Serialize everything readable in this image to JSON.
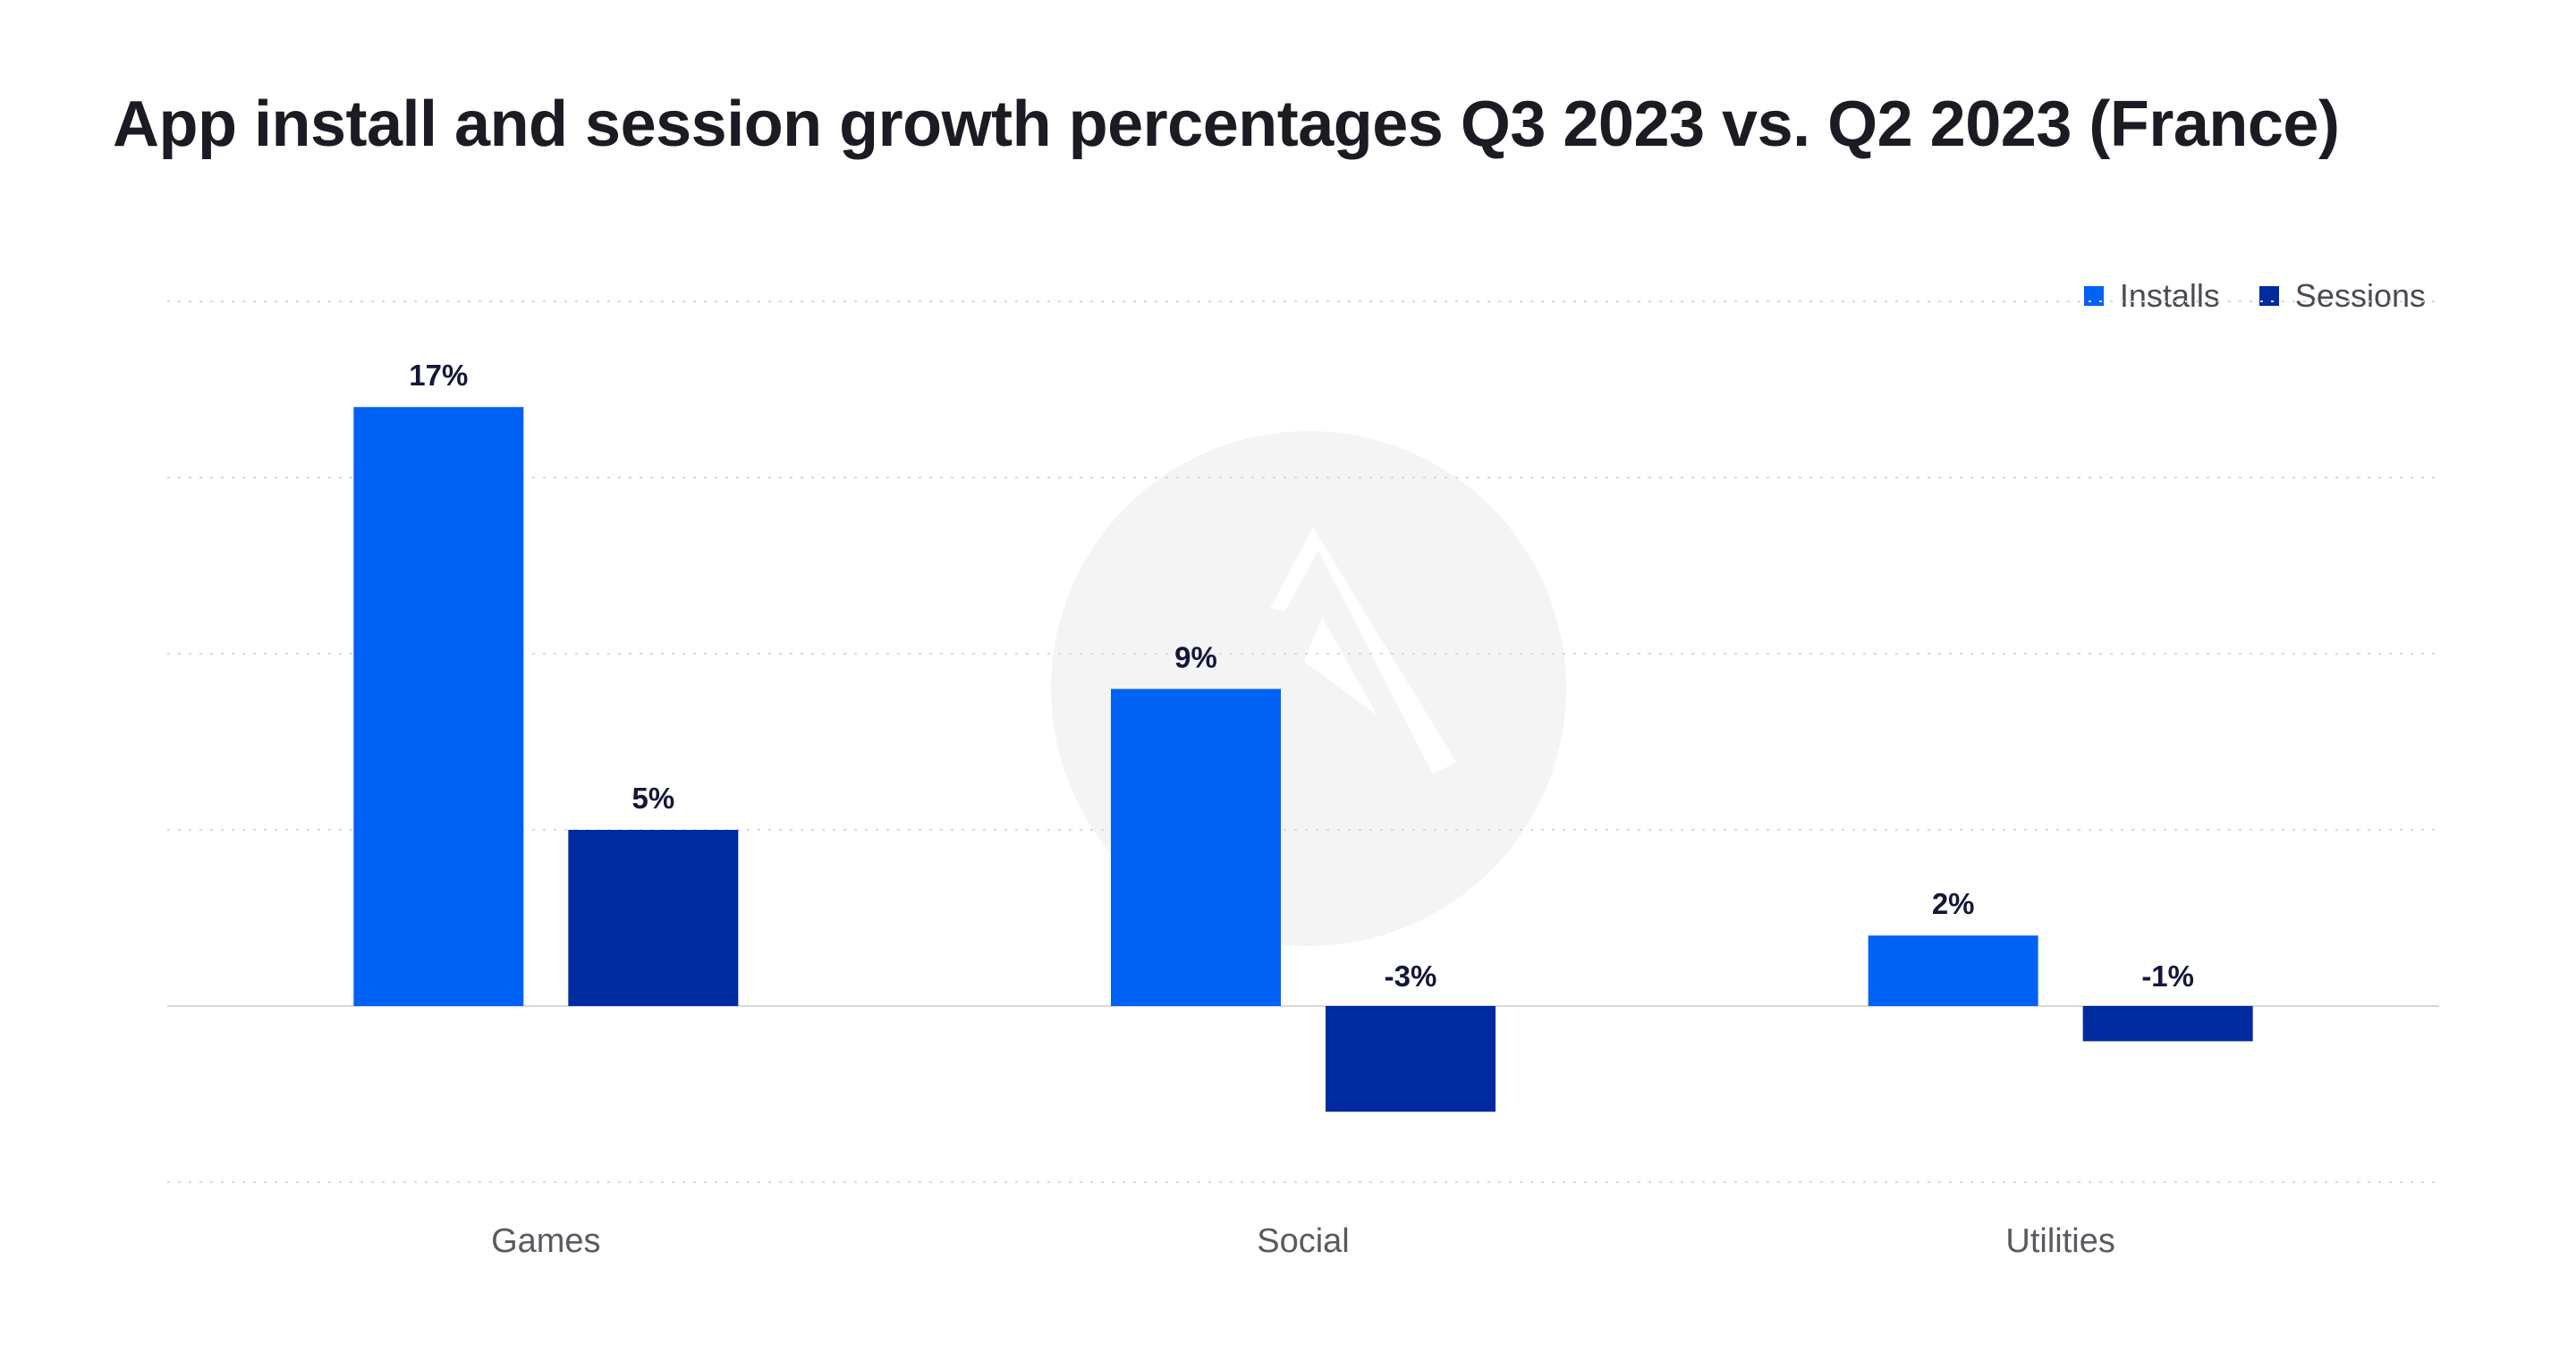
{
  "title": "App install and session growth percentages Q3 2023 vs. Q2 2023 (France)",
  "colors": {
    "installs": "#0061f5",
    "sessions": "#002aa0",
    "data_label": "#14163a",
    "grid": "#d8d8dc",
    "axis_text": "#5a5a60"
  },
  "chart_data": {
    "type": "bar",
    "title": "App install and session growth percentages Q3 2023 vs. Q2 2023 (France)",
    "categories": [
      "Games",
      "Social",
      "Utilities"
    ],
    "series": [
      {
        "name": "Installs",
        "values": [
          17,
          9,
          2
        ],
        "labels": [
          "17%",
          "9%",
          "2%"
        ]
      },
      {
        "name": "Sessions",
        "values": [
          5,
          -3,
          -1
        ],
        "labels": [
          "5%",
          "-3%",
          "-1%"
        ]
      }
    ],
    "ylim": [
      -5,
      20
    ],
    "xlabel": "",
    "ylabel": "",
    "grid": true,
    "legend_position": "top-right"
  }
}
